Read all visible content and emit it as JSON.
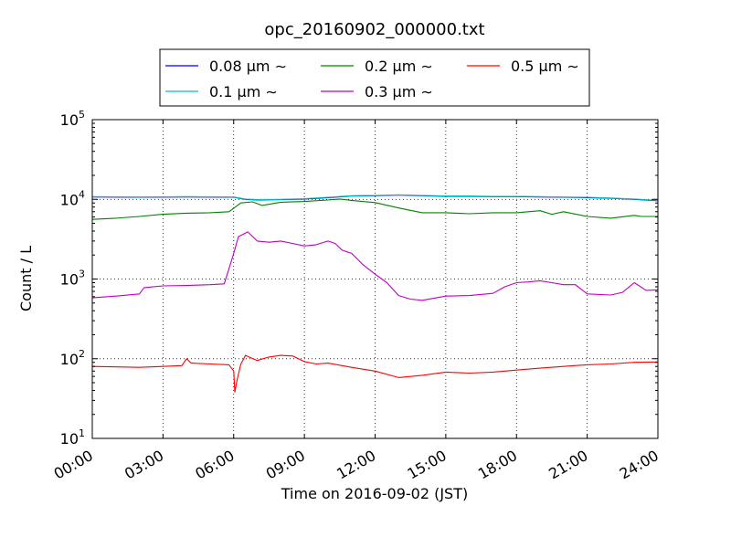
{
  "chart_data": {
    "type": "line",
    "title": "opc_20160902_000000.txt",
    "xlabel": "Time on 2016-09-02 (JST)",
    "ylabel": "Count / L",
    "yscale": "log",
    "xlim": [
      0,
      24
    ],
    "ylim": [
      10,
      100000
    ],
    "grid": true,
    "legend_position": "top-outside",
    "x_ticks": [
      {
        "value": 0,
        "label": "00:00"
      },
      {
        "value": 3,
        "label": "03:00"
      },
      {
        "value": 6,
        "label": "06:00"
      },
      {
        "value": 9,
        "label": "09:00"
      },
      {
        "value": 12,
        "label": "12:00"
      },
      {
        "value": 15,
        "label": "15:00"
      },
      {
        "value": 18,
        "label": "18:00"
      },
      {
        "value": 21,
        "label": "21:00"
      },
      {
        "value": 24,
        "label": "24:00"
      }
    ],
    "y_ticks": [
      {
        "value": 10,
        "base": "10",
        "exp": "1"
      },
      {
        "value": 100,
        "base": "10",
        "exp": "2"
      },
      {
        "value": 1000,
        "base": "10",
        "exp": "3"
      },
      {
        "value": 10000,
        "base": "10",
        "exp": "4"
      },
      {
        "value": 100000,
        "base": "10",
        "exp": "5"
      }
    ],
    "series": [
      {
        "name": "0.08 μm ∼",
        "color": "#0000ff",
        "x": [
          0,
          2,
          4,
          6,
          6.5,
          7,
          8,
          9,
          10,
          11,
          12,
          13,
          14,
          15,
          16,
          17,
          18,
          19,
          20,
          21,
          22,
          23,
          24
        ],
        "y": [
          10700,
          10600,
          10700,
          10600,
          10000,
          9800,
          9900,
          10100,
          10500,
          11000,
          11100,
          11300,
          11100,
          10900,
          10900,
          10800,
          10800,
          10700,
          10600,
          10500,
          10300,
          10000,
          9600
        ]
      },
      {
        "name": "0.1 μm ∼",
        "color": "#00bfbf",
        "x": [
          0,
          2,
          4,
          6,
          6.5,
          7,
          8,
          9,
          10,
          11,
          12,
          13,
          14,
          15,
          16,
          17,
          18,
          19,
          20,
          21,
          22,
          23,
          24
        ],
        "y": [
          10800,
          10700,
          10800,
          10700,
          10100,
          9900,
          10000,
          10200,
          10600,
          11100,
          11200,
          11400,
          11200,
          11000,
          11000,
          10900,
          10900,
          10800,
          10700,
          10600,
          10400,
          10100,
          9700
        ]
      },
      {
        "name": "0.2 μm ∼",
        "color": "#008000",
        "x": [
          0,
          1,
          2,
          3,
          4,
          5,
          5.8,
          6.3,
          6.8,
          7.2,
          8,
          9,
          10,
          10.5,
          11,
          12,
          13,
          14,
          15,
          16,
          17,
          18,
          19,
          19.5,
          20,
          21,
          22,
          23,
          23.3,
          24
        ],
        "y": [
          5600,
          5800,
          6100,
          6500,
          6700,
          6800,
          7000,
          9000,
          9300,
          8400,
          9200,
          9400,
          9800,
          10100,
          9700,
          9100,
          7800,
          6800,
          6800,
          6600,
          6800,
          6800,
          7200,
          6500,
          7000,
          6100,
          5800,
          6300,
          6100,
          6100
        ]
      },
      {
        "name": "0.3 μm ∼",
        "color": "#bf00bf",
        "x": [
          0,
          1,
          2,
          2.2,
          3,
          4,
          5,
          5.6,
          6,
          6.2,
          6.6,
          7,
          7.5,
          8,
          8.5,
          9,
          9.5,
          10,
          10.3,
          10.6,
          11,
          11.5,
          12,
          12.5,
          13,
          13.5,
          14,
          15,
          16,
          17,
          17.5,
          18,
          18.5,
          19,
          19.5,
          20,
          20.5,
          21,
          22,
          22.5,
          23,
          23.5,
          24
        ],
        "y": [
          580,
          610,
          650,
          780,
          820,
          830,
          850,
          870,
          2100,
          3400,
          3900,
          3000,
          2900,
          3000,
          2800,
          2600,
          2700,
          3000,
          2800,
          2300,
          2100,
          1500,
          1150,
          900,
          620,
          560,
          540,
          610,
          620,
          660,
          800,
          900,
          920,
          950,
          900,
          850,
          850,
          650,
          630,
          680,
          900,
          720,
          730
        ]
      },
      {
        "name": "0.5 μm ∼",
        "color": "#ff0000",
        "x": [
          0,
          1,
          2,
          3,
          3.8,
          4,
          4.2,
          5,
          5.8,
          6,
          6.05,
          6.15,
          6.3,
          6.5,
          7,
          7.5,
          8,
          8.5,
          9,
          9.5,
          10,
          11,
          12,
          13,
          14,
          15,
          16,
          17,
          18,
          19,
          20,
          21,
          22,
          23,
          24
        ],
        "y": [
          80,
          79,
          78,
          80,
          82,
          100,
          88,
          86,
          84,
          70,
          38,
          55,
          85,
          110,
          95,
          105,
          110,
          108,
          92,
          86,
          88,
          78,
          70,
          58,
          62,
          68,
          66,
          68,
          72,
          76,
          80,
          84,
          86,
          90,
          91
        ]
      }
    ]
  }
}
